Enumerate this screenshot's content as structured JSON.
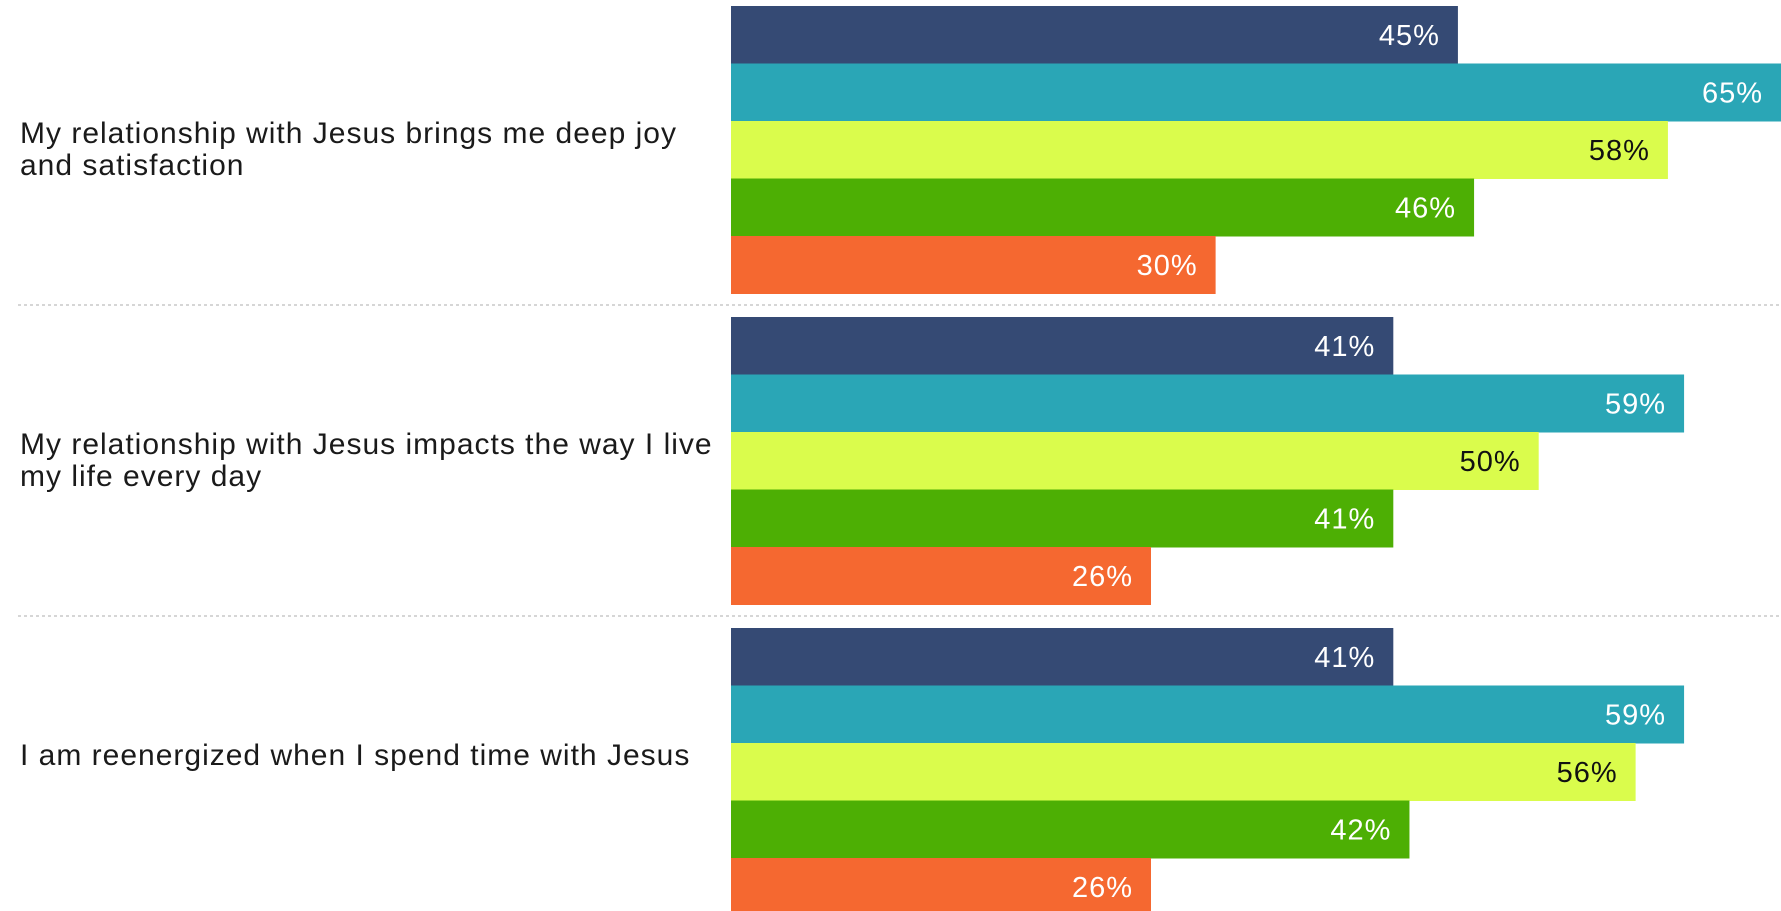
{
  "chart_data": {
    "type": "bar",
    "orientation": "horizontal",
    "categories": [
      "My relationship with Jesus brings me deep joy and satisfaction",
      "My relationship with Jesus impacts the way I live my life every day",
      "I am reenergized when I spend time with Jesus"
    ],
    "series": [
      {
        "color": "#354a74",
        "label_color": "#ffffff",
        "values": [
          45,
          41,
          41
        ]
      },
      {
        "color": "#2aa6b6",
        "label_color": "#ffffff",
        "values": [
          65,
          59,
          59
        ]
      },
      {
        "color": "#dafc4c",
        "label_color": "#111111",
        "values": [
          58,
          50,
          56
        ]
      },
      {
        "color": "#4daf04",
        "label_color": "#ffffff",
        "values": [
          46,
          41,
          42
        ]
      },
      {
        "color": "#f56830",
        "label_color": "#ffffff",
        "values": [
          30,
          26,
          26
        ]
      }
    ],
    "value_suffix": "%",
    "xlim": [
      0,
      65
    ],
    "grid": false,
    "separators": true,
    "legend": "none",
    "title": "",
    "xlabel": "",
    "ylabel": ""
  }
}
